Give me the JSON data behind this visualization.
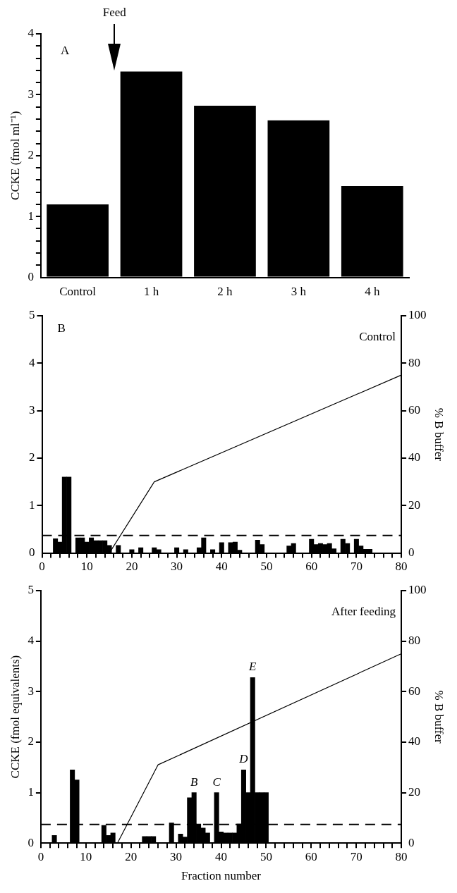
{
  "chart_data": [
    {
      "type": "bar",
      "ylabel": "CCKE (fmol ml⁻¹)",
      "categories": [
        "Control",
        "1 h",
        "2 h",
        "3 h",
        "4 h"
      ],
      "values": [
        1.2,
        3.38,
        2.82,
        2.58,
        1.5
      ],
      "color": "#000000",
      "ylim": [
        0,
        4
      ],
      "yticks": [
        0,
        {
          "value": 0.2,
          "label": null
        },
        {
          "value": 0.4,
          "label": null
        },
        {
          "value": 0.6,
          "label": null
        },
        {
          "value": 0.8,
          "label": null
        },
        1,
        {
          "value": 1.2,
          "label": null
        },
        {
          "value": 1.4,
          "label": null
        },
        {
          "value": 1.6,
          "label": null
        },
        {
          "value": 1.8,
          "label": null
        },
        2,
        {
          "value": 2.2,
          "label": null
        },
        {
          "value": 2.4,
          "label": null
        },
        {
          "value": 2.6,
          "label": null
        },
        {
          "value": 2.8,
          "label": null
        },
        3,
        {
          "value": 3.2,
          "label": null
        },
        {
          "value": 3.4,
          "label": null
        },
        {
          "value": 3.6,
          "label": null
        },
        {
          "value": 3.8,
          "label": null
        },
        4
      ],
      "annotations": [
        "A",
        "Feed"
      ]
    },
    {
      "type": "bar",
      "xlim": [
        0,
        80
      ],
      "ylim": [
        0,
        5
      ],
      "yticks": [
        0,
        1,
        2,
        3,
        4,
        5
      ],
      "y2lim": [
        0,
        100
      ],
      "y2ticks": [
        0,
        20,
        40,
        60,
        80,
        100
      ],
      "y2label": "% B buffer",
      "xticks": [
        0,
        {
          "value": 2,
          "label": null
        },
        {
          "value": 4,
          "label": null
        },
        {
          "value": 6,
          "label": null
        },
        {
          "value": 8,
          "label": null
        },
        10,
        {
          "value": 12,
          "label": null
        },
        {
          "value": 14,
          "label": null
        },
        {
          "value": 16,
          "label": null
        },
        {
          "value": 18,
          "label": null
        },
        20,
        {
          "value": 22,
          "label": null
        },
        {
          "value": 24,
          "label": null
        },
        {
          "value": 26,
          "label": null
        },
        {
          "value": 28,
          "label": null
        },
        30,
        {
          "value": 32,
          "label": null
        },
        {
          "value": 34,
          "label": null
        },
        {
          "value": 36,
          "label": null
        },
        {
          "value": 38,
          "label": null
        },
        40,
        {
          "value": 42,
          "label": null
        },
        {
          "value": 44,
          "label": null
        },
        {
          "value": 46,
          "label": null
        },
        {
          "value": 48,
          "label": null
        },
        50,
        {
          "value": 52,
          "label": null
        },
        {
          "value": 54,
          "label": null
        },
        {
          "value": 56,
          "label": null
        },
        {
          "value": 58,
          "label": null
        },
        60,
        {
          "value": 62,
          "label": null
        },
        {
          "value": 64,
          "label": null
        },
        {
          "value": 66,
          "label": null
        },
        {
          "value": 68,
          "label": null
        },
        70,
        {
          "value": 72,
          "label": null
        },
        {
          "value": 74,
          "label": null
        },
        {
          "value": 76,
          "label": null
        },
        {
          "value": 78,
          "label": null
        },
        80
      ],
      "series": [
        {
          "type": "bar",
          "color": "#000000",
          "x": [
            3,
            4,
            5,
            6,
            8,
            9,
            10,
            11,
            12,
            13,
            14,
            15,
            17,
            20,
            22,
            25,
            26,
            30,
            32,
            35,
            36,
            38,
            40,
            42,
            43,
            44,
            48,
            49,
            55,
            56,
            60,
            61,
            62,
            63,
            64,
            65,
            67,
            68,
            70,
            71,
            72,
            73
          ],
          "values": [
            0.3,
            0.23,
            1.6,
            1.6,
            0.32,
            0.32,
            0.23,
            0.32,
            0.26,
            0.26,
            0.26,
            0.16,
            0.16,
            0.07,
            0.11,
            0.11,
            0.07,
            0.11,
            0.07,
            0.11,
            0.32,
            0.07,
            0.22,
            0.22,
            0.23,
            0.06,
            0.27,
            0.18,
            0.15,
            0.2,
            0.29,
            0.18,
            0.2,
            0.18,
            0.2,
            0.09,
            0.29,
            0.2,
            0.29,
            0.15,
            0.08,
            0.08
          ]
        },
        {
          "type": "line",
          "axis": "y2",
          "color": "#000000",
          "x": [
            15,
            25,
            80
          ],
          "values": [
            0,
            30,
            75
          ]
        }
      ],
      "ref_lines": [
        {
          "axis": "y",
          "value": 0.37,
          "line_style": "dashed",
          "color": "#000000"
        }
      ],
      "annotations": [
        "B",
        "Control"
      ]
    },
    {
      "type": "bar",
      "xlabel": "Fraction number",
      "ylabel": "CCKE (fmol equivalents)",
      "xlim": [
        0,
        80
      ],
      "ylim": [
        0,
        5
      ],
      "yticks": [
        0,
        1,
        2,
        3,
        4,
        5
      ],
      "y2lim": [
        0,
        100
      ],
      "y2ticks": [
        0,
        20,
        40,
        60,
        80,
        100
      ],
      "y2label": "% B buffer",
      "xticks": [
        0,
        {
          "value": 2,
          "label": null
        },
        {
          "value": 4,
          "label": null
        },
        {
          "value": 6,
          "label": null
        },
        {
          "value": 8,
          "label": null
        },
        10,
        {
          "value": 12,
          "label": null
        },
        {
          "value": 14,
          "label": null
        },
        {
          "value": 16,
          "label": null
        },
        {
          "value": 18,
          "label": null
        },
        20,
        {
          "value": 22,
          "label": null
        },
        {
          "value": 24,
          "label": null
        },
        {
          "value": 26,
          "label": null
        },
        {
          "value": 28,
          "label": null
        },
        30,
        {
          "value": 32,
          "label": null
        },
        {
          "value": 34,
          "label": null
        },
        {
          "value": 36,
          "label": null
        },
        {
          "value": 38,
          "label": null
        },
        40,
        {
          "value": 42,
          "label": null
        },
        {
          "value": 44,
          "label": null
        },
        {
          "value": 46,
          "label": null
        },
        {
          "value": 48,
          "label": null
        },
        50,
        {
          "value": 52,
          "label": null
        },
        {
          "value": 54,
          "label": null
        },
        {
          "value": 56,
          "label": null
        },
        {
          "value": 58,
          "label": null
        },
        60,
        {
          "value": 62,
          "label": null
        },
        {
          "value": 64,
          "label": null
        },
        {
          "value": 66,
          "label": null
        },
        {
          "value": 68,
          "label": null
        },
        70,
        {
          "value": 72,
          "label": null
        },
        {
          "value": 74,
          "label": null
        },
        {
          "value": 76,
          "label": null
        },
        {
          "value": 78,
          "label": null
        },
        80
      ],
      "series": [
        {
          "type": "bar",
          "color": "#000000",
          "x": [
            3,
            7,
            8,
            14,
            15,
            16,
            23,
            24,
            25,
            29,
            31,
            32,
            33,
            34,
            35,
            36,
            37,
            39,
            40,
            41,
            42,
            43,
            44,
            45,
            46,
            47,
            48,
            49,
            50
          ],
          "values": [
            0.15,
            1.45,
            1.25,
            0.35,
            0.15,
            0.2,
            0.13,
            0.13,
            0.13,
            0.4,
            0.18,
            0.12,
            0.9,
            1.0,
            0.38,
            0.3,
            0.2,
            1.0,
            0.22,
            0.2,
            0.2,
            0.2,
            0.38,
            1.45,
            1.0,
            3.28,
            1.0,
            1.0,
            1.0
          ]
        },
        {
          "type": "line",
          "axis": "y2",
          "color": "#000000",
          "x": [
            17,
            26,
            80
          ],
          "values": [
            0,
            31,
            75
          ]
        }
      ],
      "ref_lines": [
        {
          "axis": "y",
          "value": 0.37,
          "line_style": "dashed",
          "color": "#000000"
        }
      ],
      "annotations": [
        "After feeding",
        {
          "text": "B",
          "x": 34,
          "y": 1.0
        },
        {
          "text": "C",
          "x": 39,
          "y": 1.0
        },
        {
          "text": "D",
          "x": 45,
          "y": 1.45
        },
        {
          "text": "E",
          "x": 47,
          "y": 3.28
        }
      ]
    }
  ]
}
